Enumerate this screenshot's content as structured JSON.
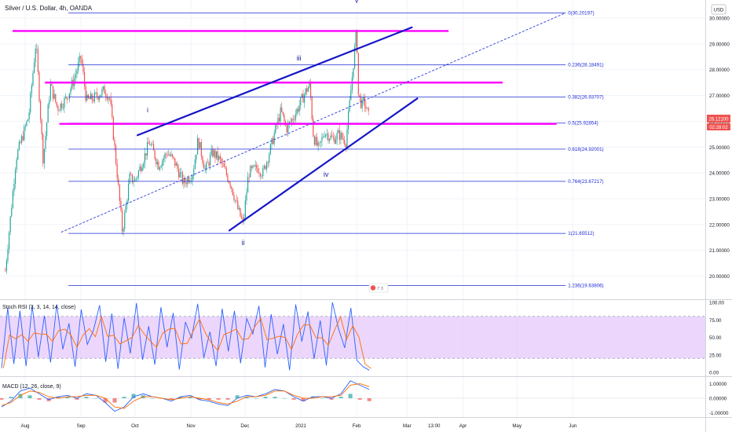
{
  "header": {
    "symbol_title": "Silver / U.S. Dollar, 4h, OANDA",
    "currency_button": "USD"
  },
  "price_tags": {
    "last_price": "26.12100",
    "countdown": "02:28:02"
  },
  "colors": {
    "candle_up": "#26a69a",
    "candle_down": "#ef5350",
    "fib_line": "#1f2bd6",
    "channel": "#1414c8",
    "resistance": "#ff00ff",
    "rsi_band": "#e6c8fa",
    "rsi_k": "#2962ff",
    "rsi_d": "#ff6d00",
    "macd_hist": "#26a69a"
  },
  "chart_data": [
    {
      "type": "candlestick",
      "title": "Silver / U.S. Dollar, 4h, OANDA",
      "x_tick_labels": [
        "Aug",
        "Sep",
        "Oct",
        "Nov",
        "Dec",
        "2021",
        "Feb",
        "Mar",
        "13:00",
        "Apr",
        "May",
        "Jun"
      ],
      "y_tick_labels": [
        "30.00000",
        "29.00000",
        "28.00000",
        "27.00000",
        "26.00000",
        "25.00000",
        "24.00000",
        "23.00000",
        "22.00000",
        "21.00000",
        "20.00000"
      ],
      "ylim": [
        19.5,
        30.6
      ],
      "price_path": [
        {
          "date": "2020-07-21",
          "close": 20.2
        },
        {
          "date": "2020-07-27",
          "close": 24.6
        },
        {
          "date": "2020-08-03",
          "close": 26.2
        },
        {
          "date": "2020-08-07",
          "close": 29.1
        },
        {
          "date": "2020-08-11",
          "close": 24.5
        },
        {
          "date": "2020-08-15",
          "close": 27.4
        },
        {
          "date": "2020-08-19",
          "close": 26.5
        },
        {
          "date": "2020-08-24",
          "close": 26.9
        },
        {
          "date": "2020-08-28",
          "close": 27.6
        },
        {
          "date": "2020-09-01",
          "close": 28.5
        },
        {
          "date": "2020-09-04",
          "close": 26.8
        },
        {
          "date": "2020-09-08",
          "close": 26.9
        },
        {
          "date": "2020-09-14",
          "close": 27.2
        },
        {
          "date": "2020-09-17",
          "close": 26.9
        },
        {
          "date": "2020-09-21",
          "close": 24.0
        },
        {
          "date": "2020-09-24",
          "close": 21.7
        },
        {
          "date": "2020-09-28",
          "close": 23.8
        },
        {
          "date": "2020-10-01",
          "close": 23.7
        },
        {
          "date": "2020-10-06",
          "close": 24.6
        },
        {
          "date": "2020-10-09",
          "close": 25.2
        },
        {
          "date": "2020-10-14",
          "close": 24.3
        },
        {
          "date": "2020-10-19",
          "close": 24.8
        },
        {
          "date": "2020-10-23",
          "close": 24.4
        },
        {
          "date": "2020-10-28",
          "close": 23.6
        },
        {
          "date": "2020-11-02",
          "close": 24.0
        },
        {
          "date": "2020-11-05",
          "close": 25.3
        },
        {
          "date": "2020-11-09",
          "close": 24.1
        },
        {
          "date": "2020-11-13",
          "close": 24.8
        },
        {
          "date": "2020-11-17",
          "close": 24.5
        },
        {
          "date": "2020-11-23",
          "close": 23.6
        },
        {
          "date": "2020-11-27",
          "close": 22.6
        },
        {
          "date": "2020-11-30",
          "close": 22.0
        },
        {
          "date": "2020-12-03",
          "close": 24.0
        },
        {
          "date": "2020-12-08",
          "close": 24.2
        },
        {
          "date": "2020-12-11",
          "close": 24.0
        },
        {
          "date": "2020-12-15",
          "close": 24.9
        },
        {
          "date": "2020-12-18",
          "close": 25.7
        },
        {
          "date": "2020-12-21",
          "close": 26.4
        },
        {
          "date": "2020-12-24",
          "close": 25.7
        },
        {
          "date": "2020-12-29",
          "close": 26.3
        },
        {
          "date": "2021-01-04",
          "close": 27.2
        },
        {
          "date": "2021-01-06",
          "close": 27.4
        },
        {
          "date": "2021-01-08",
          "close": 25.4
        },
        {
          "date": "2021-01-11",
          "close": 24.9
        },
        {
          "date": "2021-01-14",
          "close": 25.6
        },
        {
          "date": "2021-01-19",
          "close": 25.3
        },
        {
          "date": "2021-01-22",
          "close": 25.5
        },
        {
          "date": "2021-01-26",
          "close": 25.2
        },
        {
          "date": "2021-01-28",
          "close": 26.6
        },
        {
          "date": "2021-02-01",
          "close": 29.6
        },
        {
          "date": "2021-02-02",
          "close": 27.0
        },
        {
          "date": "2021-02-04",
          "close": 26.6
        },
        {
          "date": "2021-02-05",
          "close": 26.8
        },
        {
          "date": "2021-02-08",
          "close": 26.1
        }
      ],
      "fibonacci_levels": [
        {
          "label": "0(30.20197)",
          "value": 30.20197
        },
        {
          "label": "0.236(28.18491)",
          "value": 28.18491
        },
        {
          "label": "0.382(26.93707)",
          "value": 26.93707
        },
        {
          "label": "0.5(25.92854)",
          "value": 25.92854
        },
        {
          "label": "0.618(24.92001)",
          "value": 24.92001
        },
        {
          "label": "0.764(23.67217)",
          "value": 23.67217
        },
        {
          "label": "1(21.65512)",
          "value": 21.65512
        },
        {
          "label": "1.236(19.63806)",
          "value": 19.63806
        }
      ],
      "wave_labels": [
        {
          "text": "i",
          "date": "2020-10-08",
          "price": 26.35
        },
        {
          "text": "ii",
          "date": "2020-11-30",
          "price": 21.2
        },
        {
          "text": "iii",
          "date": "2020-12-31",
          "price": 28.35
        },
        {
          "text": "iv",
          "date": "2021-01-15",
          "price": 23.85
        },
        {
          "text": "v",
          "date": "2021-02-01",
          "price": 30.6
        }
      ],
      "resistance_lines": [
        {
          "start": "2020-07-25",
          "end": "2021-03-24",
          "value": 29.5
        },
        {
          "start": "2020-08-12",
          "end": "2021-04-23",
          "value": 27.5
        },
        {
          "start": "2020-08-20",
          "end": "2021-05-23",
          "value": 25.9
        }
      ],
      "trend_lines": [
        {
          "name": "upper channel",
          "start": {
            "date": "2020-10-02",
            "price": 25.45
          },
          "end": {
            "date": "2021-03-04",
            "price": 29.65
          }
        },
        {
          "name": "lower channel",
          "start": {
            "date": "2020-11-22",
            "price": 21.75
          },
          "end": {
            "date": "2021-03-07",
            "price": 26.9
          }
        },
        {
          "name": "dashed trend",
          "start": {
            "date": "2020-08-21",
            "price": 21.7
          },
          "end": {
            "date": "2021-05-28",
            "price": 30.2
          }
        }
      ]
    },
    {
      "type": "line",
      "title": "Stoch RSI (3, 3, 14, 14, close)",
      "y_tick_labels": [
        "100.00",
        "75.00",
        "50.00",
        "25.00",
        "0.00"
      ],
      "ylim": [
        -5,
        105
      ],
      "band": [
        20,
        80
      ],
      "series": [
        {
          "values": [
            6,
            92,
            12,
            88,
            9,
            95,
            22,
            81,
            14,
            97,
            33,
            70,
            8,
            90,
            40,
            60,
            96,
            15,
            84,
            5,
            78,
            27,
            99,
            18,
            66,
            11,
            93,
            36,
            85,
            4,
            72,
            49,
            98,
            21,
            58,
            9,
            91,
            30,
            88,
            13,
            77,
            55,
            95,
            7,
            83,
            26,
            69,
            3,
            97,
            44,
            87,
            19,
            74,
            10,
            100,
            62,
            35,
            92,
            17,
            8,
            3
          ]
        }
      ]
    },
    {
      "type": "bar",
      "title": "MACD (12, 26, close, 9)",
      "y_tick_labels": [
        "1.00000",
        "0.00000",
        "-1.00000"
      ],
      "ylim": [
        -1.5,
        1.4
      ],
      "series": [
        {
          "name": "MACD",
          "values": [
            -0.6,
            -0.2,
            0.5,
            0.7,
            0.3,
            -0.1,
            0.1,
            0.2,
            0.0,
            0.3,
            0.2,
            -0.3,
            -0.9,
            -0.6,
            0.1,
            0.3,
            0.1,
            0.0,
            -0.2,
            0.1,
            0.2,
            -0.1,
            -0.2,
            -0.4,
            -0.5,
            0.0,
            0.2,
            0.1,
            0.3,
            0.6,
            0.5,
            0.1,
            -0.2,
            0.1,
            0.1,
            0.0,
            0.3,
            1.2,
            0.9,
            0.6
          ]
        },
        {
          "name": "Signal",
          "values": [
            -0.5,
            -0.3,
            0.2,
            0.5,
            0.4,
            0.1,
            0.0,
            0.1,
            0.1,
            0.2,
            0.2,
            0.0,
            -0.6,
            -0.7,
            -0.2,
            0.1,
            0.1,
            0.0,
            -0.1,
            0.0,
            0.1,
            0.0,
            -0.1,
            -0.3,
            -0.4,
            -0.2,
            0.1,
            0.1,
            0.2,
            0.5,
            0.5,
            0.2,
            0.0,
            0.0,
            0.1,
            0.1,
            0.2,
            0.9,
            1.0,
            0.8
          ]
        }
      ]
    }
  ]
}
